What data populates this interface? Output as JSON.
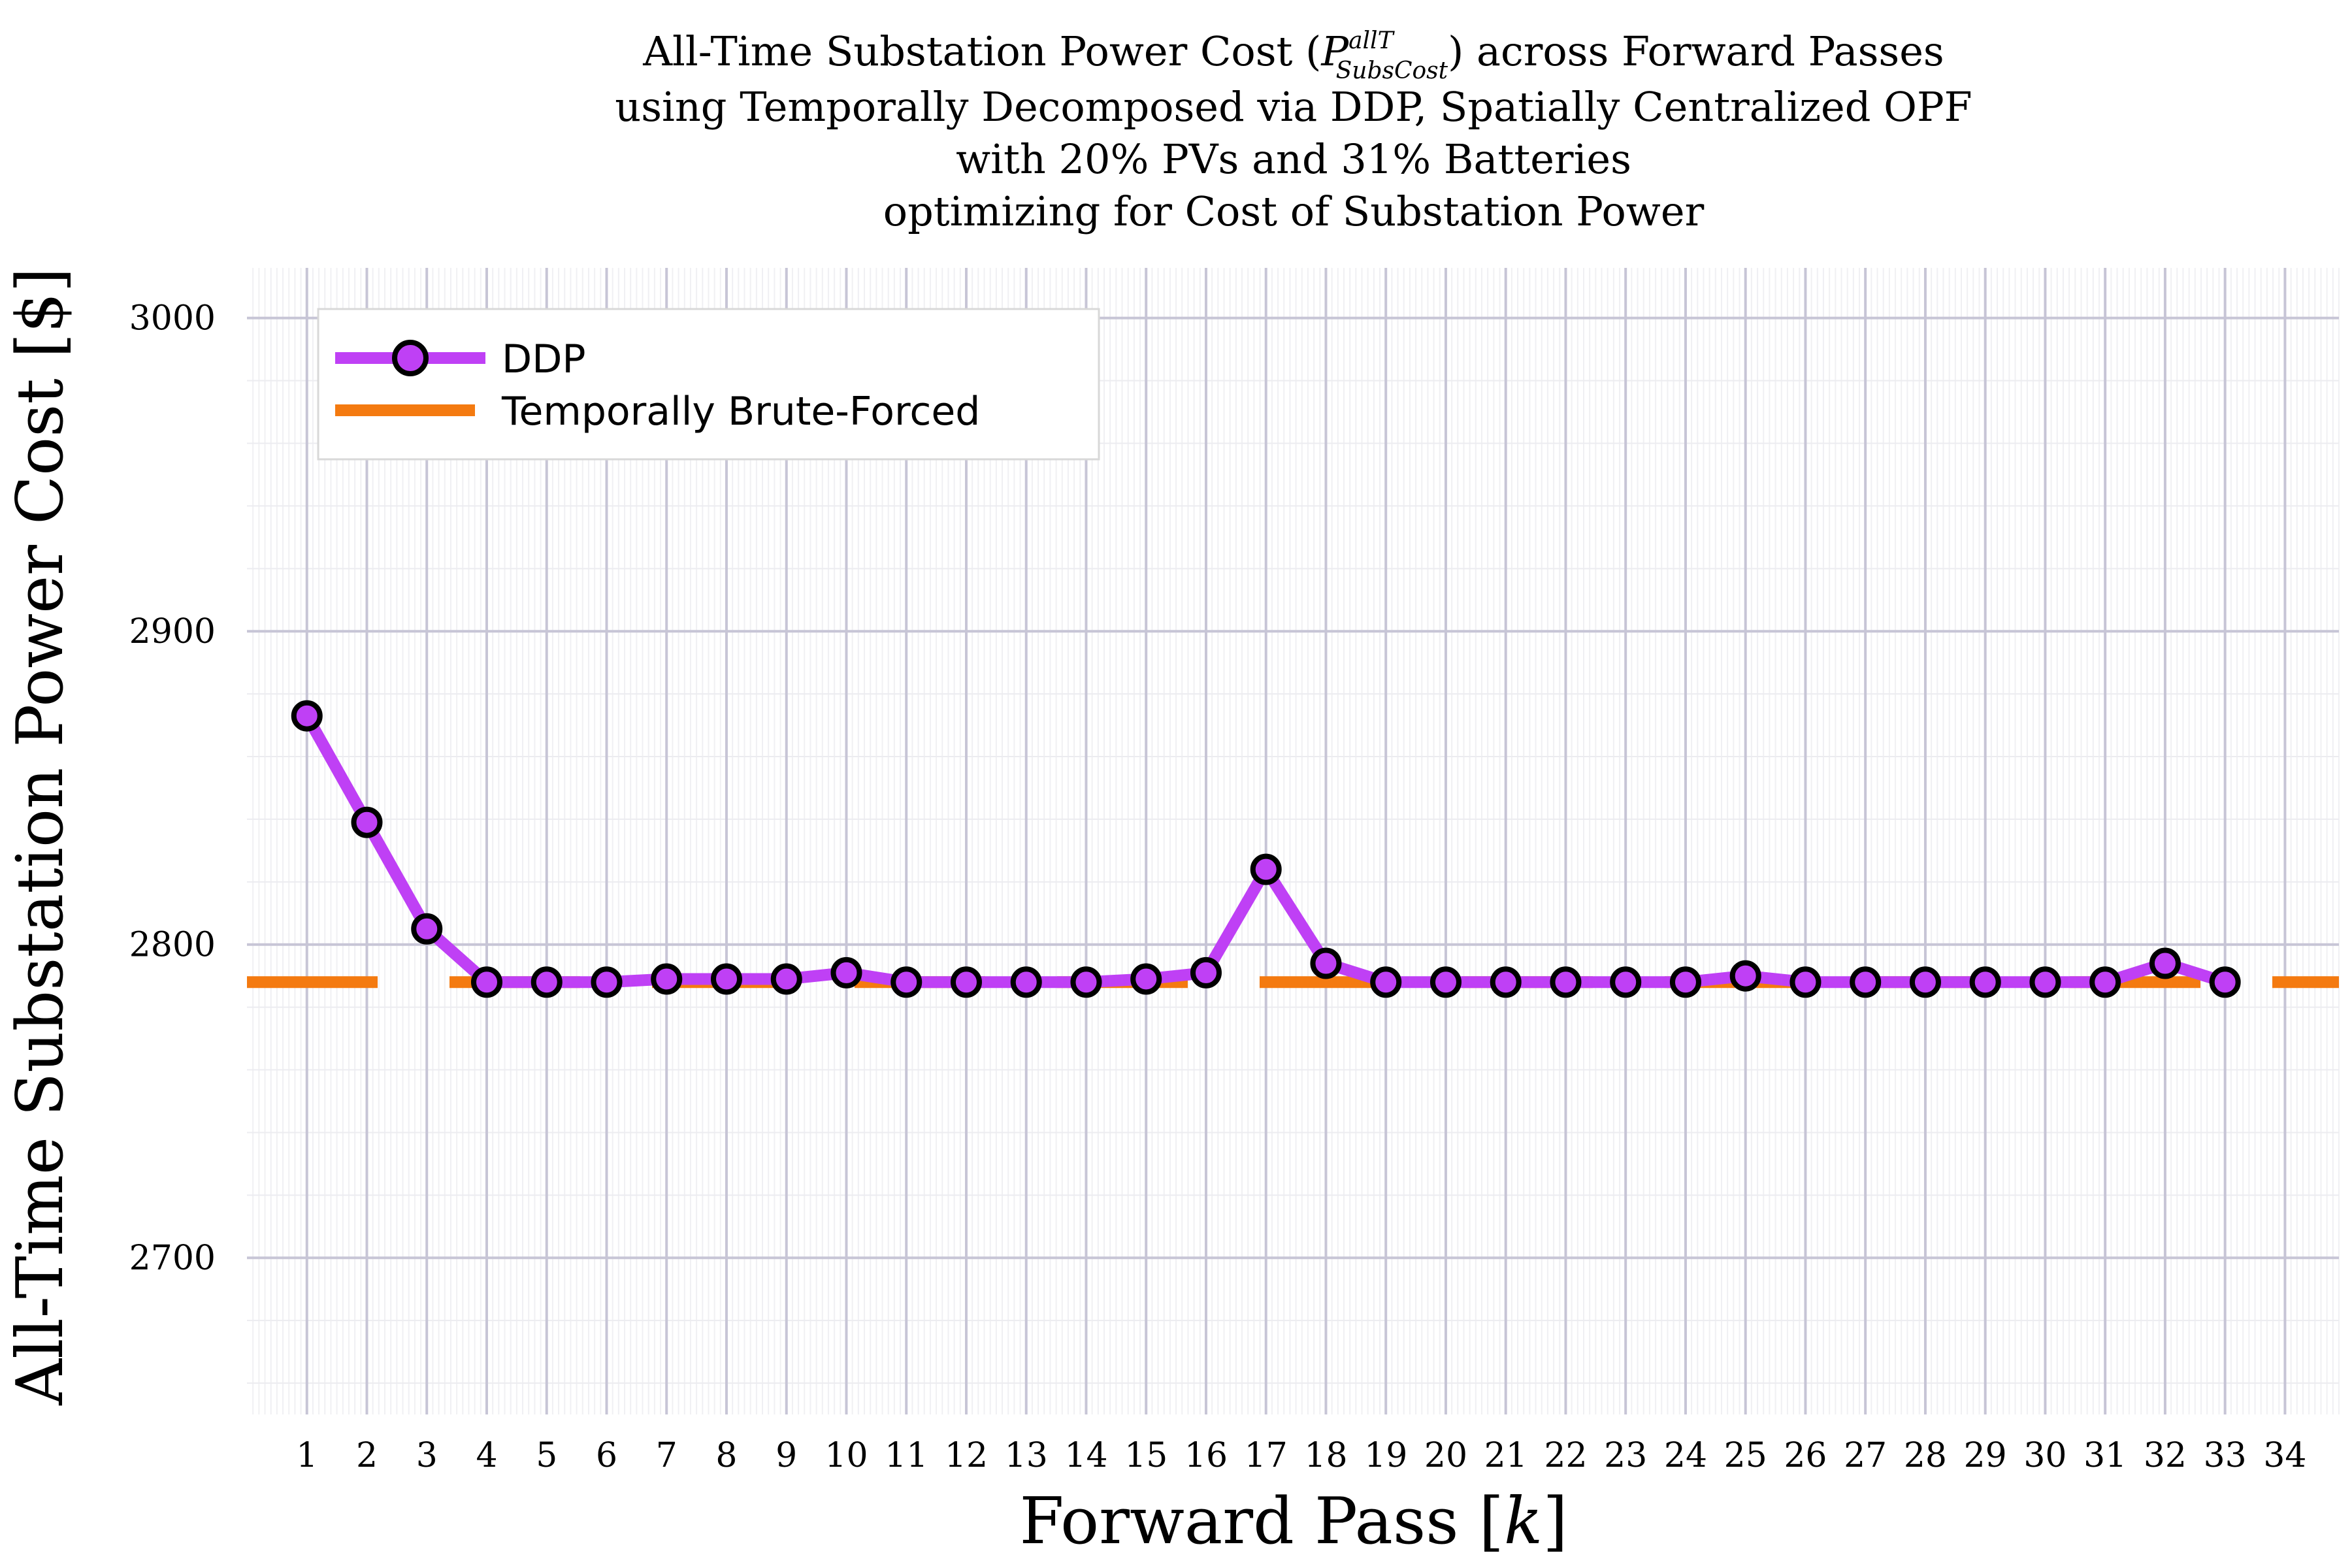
{
  "chart_data": {
    "type": "line",
    "title_lines": [
      {
        "before": "All-Time Substation Power Cost (",
        "math_symbol": "P",
        "math_superscript": "allT",
        "math_subscript": "SubsCost",
        "after": ") across Forward Passes"
      },
      {
        "text": "using Temporally Decomposed via DDP, Spatially Centralized OPF"
      },
      {
        "text": "with 20% PVs and 31% Batteries"
      },
      {
        "text": "optimizing for Cost of Substation Power"
      }
    ],
    "xlabel": {
      "before": "Forward Pass [",
      "math": "k",
      "after": "]"
    },
    "ylabel": "All-Time Substation Power Cost [$]",
    "x_ticks": [
      1,
      2,
      3,
      4,
      5,
      6,
      7,
      8,
      9,
      10,
      11,
      12,
      13,
      14,
      15,
      16,
      17,
      18,
      19,
      20,
      21,
      22,
      23,
      24,
      25,
      26,
      27,
      28,
      29,
      30,
      31,
      32,
      33,
      34
    ],
    "y_ticks": [
      2700,
      2800,
      2900,
      3000
    ],
    "xlim": [
      0,
      34.9
    ],
    "ylim": [
      2650,
      3016
    ],
    "grid": true,
    "legend_position": "top-left",
    "series": [
      {
        "name": "DDP",
        "color": "#bf40f5",
        "marker": "circle",
        "x": [
          1,
          2,
          3,
          4,
          5,
          6,
          7,
          8,
          9,
          10,
          11,
          12,
          13,
          14,
          15,
          16,
          17,
          18,
          19,
          20,
          21,
          22,
          23,
          24,
          25,
          26,
          27,
          28,
          29,
          30,
          31,
          32,
          33
        ],
        "values": [
          2873,
          2839,
          2805,
          2788,
          2788,
          2788,
          2789,
          2789,
          2789,
          2791,
          2788,
          2788,
          2788,
          2788,
          2789,
          2791,
          2824,
          2794,
          2788,
          2788,
          2788,
          2788,
          2788,
          2788,
          2790,
          2788,
          2788,
          2788,
          2788,
          2788,
          2788,
          2794,
          2788
        ]
      },
      {
        "name": "Temporally Brute-Forced",
        "color": "#f47a10",
        "style": "dashed",
        "value": 2788
      }
    ]
  }
}
